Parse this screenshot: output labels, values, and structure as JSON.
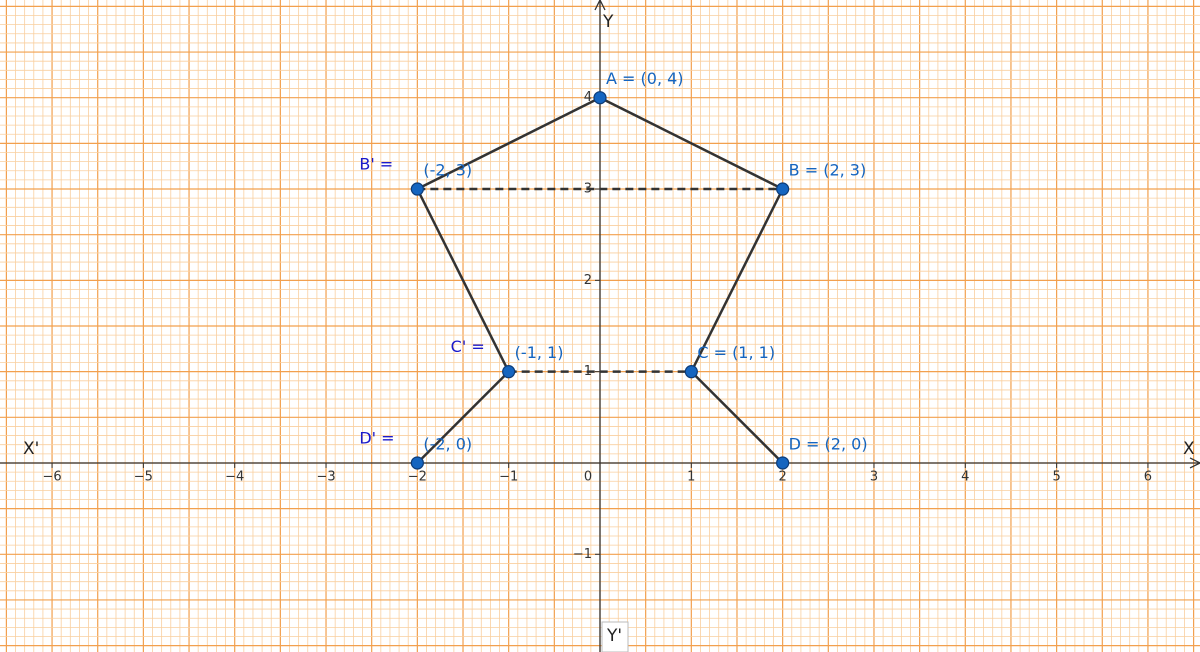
{
  "chart_data": {
    "type": "scatter",
    "x_axis_label": "X",
    "x_axis_neg_label": "X'",
    "y_axis_label": "Y",
    "y_axis_neg_label": "Y'",
    "xlim": [
      -6.57,
      6.57
    ],
    "ylim": [
      -2.07,
      5.07
    ],
    "xticks": [
      {
        "value": -6,
        "label": "−6"
      },
      {
        "value": -5,
        "label": "−5"
      },
      {
        "value": -4,
        "label": "−4"
      },
      {
        "value": -3,
        "label": "−3"
      },
      {
        "value": -2,
        "label": "−2"
      },
      {
        "value": -1,
        "label": "−1"
      },
      0,
      1,
      2,
      3,
      4,
      5,
      6
    ],
    "yticks": [
      {
        "value": -1,
        "label": "−1"
      },
      1,
      2,
      3,
      4
    ],
    "grid": true,
    "color": "#1565c0",
    "points": [
      {
        "label": "A = (0, 4)",
        "x": 0,
        "y": 4
      },
      {
        "label": "B = (2, 3)",
        "x": 2,
        "y": 3
      },
      {
        "label": "C = (1, 1)",
        "x": 1,
        "y": 1
      },
      {
        "label": "D = (2, 0)",
        "x": 2,
        "y": 0
      },
      {
        "prefix": "B' =",
        "label": "(-2, 3)",
        "x": -2,
        "y": 3
      },
      {
        "prefix": "C' =",
        "label": "(-1, 1)",
        "x": -1,
        "y": 1
      },
      {
        "prefix": "D' =",
        "label": "(-2, 0)",
        "x": -2,
        "y": 0
      }
    ],
    "segments": [
      [
        0,
        1
      ],
      [
        1,
        2
      ],
      [
        2,
        3
      ],
      [
        0,
        4
      ],
      [
        4,
        5
      ],
      [
        5,
        6
      ]
    ],
    "dashed_segments": [
      [
        4,
        1
      ],
      [
        5,
        2
      ]
    ]
  }
}
